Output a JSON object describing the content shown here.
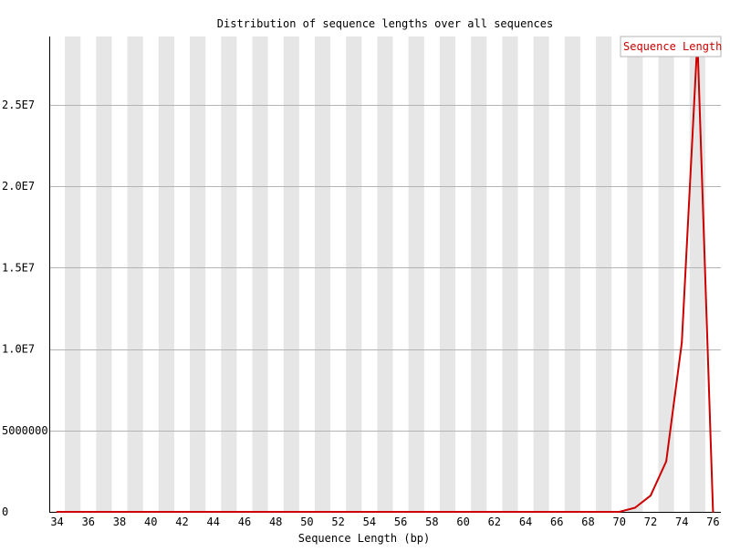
{
  "chart_data": {
    "type": "line",
    "title": "Distribution of sequence lengths over all sequences",
    "xlabel": "Sequence Length (bp)",
    "ylabel": "",
    "x": [
      34,
      35,
      36,
      37,
      38,
      39,
      40,
      41,
      42,
      43,
      44,
      45,
      46,
      47,
      48,
      49,
      50,
      51,
      52,
      53,
      54,
      55,
      56,
      57,
      58,
      59,
      60,
      61,
      62,
      63,
      64,
      65,
      66,
      67,
      68,
      69,
      70,
      71,
      72,
      73,
      74,
      75,
      76
    ],
    "xlim": [
      34,
      76
    ],
    "ylim": [
      0,
      29200000
    ],
    "x_ticks": [
      "34",
      "36",
      "38",
      "40",
      "42",
      "44",
      "46",
      "48",
      "50",
      "52",
      "54",
      "56",
      "58",
      "60",
      "62",
      "64",
      "66",
      "68",
      "70",
      "72",
      "74",
      "76"
    ],
    "y_ticks": [
      {
        "value": 0,
        "label": "0"
      },
      {
        "value": 5000000,
        "label": "5000000"
      },
      {
        "value": 10000000,
        "label": "1.0E7"
      },
      {
        "value": 15000000,
        "label": "1.5E7"
      },
      {
        "value": 20000000,
        "label": "2.0E7"
      },
      {
        "value": 25000000,
        "label": "2.5E7"
      }
    ],
    "grid": true,
    "legend_position": "top-right",
    "series": [
      {
        "name": "Sequence Length",
        "color": "#cc0000",
        "values": [
          0,
          0,
          0,
          0,
          0,
          0,
          0,
          0,
          0,
          0,
          0,
          0,
          0,
          0,
          0,
          0,
          0,
          0,
          0,
          0,
          0,
          0,
          0,
          0,
          0,
          0,
          0,
          0,
          0,
          0,
          0,
          0,
          0,
          0,
          0,
          0,
          0,
          250000,
          1000000,
          3100000,
          10400000,
          29000000,
          0
        ]
      }
    ]
  }
}
